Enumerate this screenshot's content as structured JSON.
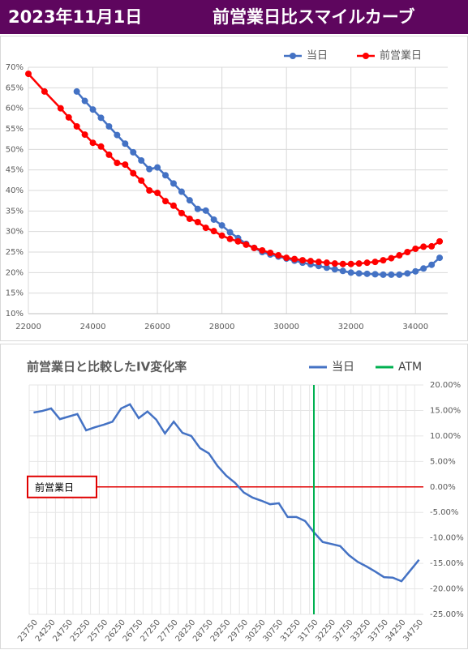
{
  "header": {
    "date": "2023年11月1日",
    "title": "前営業日比スマイルカーブ"
  },
  "chart_data": [
    {
      "type": "line",
      "markers": true,
      "grid": true,
      "legend": "top",
      "xlim": [
        22000,
        35000
      ],
      "xticks": [
        22000,
        24000,
        26000,
        28000,
        30000,
        32000,
        34000
      ],
      "ylim": [
        10,
        70
      ],
      "yticks": [
        {
          "value": 10,
          "label": "10%"
        },
        {
          "value": 15,
          "label": "15%"
        },
        {
          "value": 20,
          "label": "20%"
        },
        {
          "value": 25,
          "label": "25%"
        },
        {
          "value": 30,
          "label": "30%"
        },
        {
          "value": 35,
          "label": "35%"
        },
        {
          "value": 40,
          "label": "40%"
        },
        {
          "value": 45,
          "label": "45%"
        },
        {
          "value": 50,
          "label": "50%"
        },
        {
          "value": 55,
          "label": "55%"
        },
        {
          "value": 60,
          "label": "60%"
        },
        {
          "value": 65,
          "label": "65%"
        },
        {
          "value": 70,
          "label": "70%"
        }
      ],
      "series": [
        {
          "name": "当日",
          "color": "#4472c4",
          "x": [
            23500,
            23750,
            24000,
            24250,
            24500,
            24750,
            25000,
            25250,
            25500,
            25750,
            26000,
            26250,
            26500,
            26750,
            27000,
            27250,
            27500,
            27750,
            28000,
            28250,
            28500,
            28750,
            29000,
            29250,
            29500,
            29750,
            30000,
            30250,
            30500,
            30750,
            31000,
            31250,
            31500,
            31750,
            32000,
            32250,
            32500,
            32750,
            33000,
            33250,
            33500,
            33750,
            34000,
            34250,
            34500,
            34750
          ],
          "values": [
            64.1,
            61.8,
            59.7,
            57.7,
            55.6,
            53.5,
            51.4,
            49.3,
            47.3,
            45.2,
            45.6,
            43.7,
            41.7,
            39.7,
            37.6,
            35.5,
            35.1,
            32.9,
            31.5,
            29.8,
            28.4,
            27.0,
            26.0,
            25.0,
            24.4,
            23.9,
            23.4,
            22.9,
            22.4,
            22.0,
            21.6,
            21.2,
            20.8,
            20.4,
            20.0,
            19.8,
            19.7,
            19.6,
            19.5,
            19.5,
            19.5,
            19.8,
            20.3,
            21.0,
            21.9,
            23.6
          ]
        },
        {
          "name": "前営業日",
          "color": "#ff0000",
          "x": [
            22000,
            22500,
            23000,
            23250,
            23500,
            23750,
            24000,
            24250,
            24500,
            24750,
            25000,
            25250,
            25500,
            25750,
            26000,
            26250,
            26500,
            26750,
            27000,
            27250,
            27500,
            27750,
            28000,
            28250,
            28500,
            28750,
            29000,
            29250,
            29500,
            29750,
            30000,
            30250,
            30500,
            30750,
            31000,
            31250,
            31500,
            31750,
            32000,
            32250,
            32500,
            32750,
            33000,
            33250,
            33500,
            33750,
            34000,
            34250,
            34500,
            34750
          ],
          "values": [
            68.4,
            64.1,
            60.0,
            57.8,
            55.6,
            53.6,
            51.6,
            50.7,
            48.7,
            46.7,
            46.3,
            44.2,
            42.4,
            40.0,
            39.4,
            37.4,
            36.3,
            34.5,
            33.1,
            32.3,
            30.9,
            30.1,
            29.0,
            28.2,
            27.6,
            26.8,
            26.0,
            25.4,
            24.8,
            24.2,
            23.6,
            23.3,
            23.0,
            22.8,
            22.6,
            22.4,
            22.2,
            22.1,
            22.1,
            22.2,
            22.4,
            22.6,
            23.0,
            23.5,
            24.2,
            25.0,
            25.8,
            26.3,
            26.4,
            27.6
          ]
        }
      ]
    },
    {
      "type": "line",
      "title": "前営業日と比較したIV変化率",
      "grid": true,
      "legend": "top",
      "y_axis_side": "right",
      "categories": [
        "23750",
        null,
        "24250",
        null,
        "24750",
        null,
        "25250",
        null,
        "25750",
        null,
        "26250",
        null,
        "26750",
        null,
        "27250",
        null,
        "27750",
        null,
        "28250",
        null,
        "28750",
        null,
        "29250",
        null,
        "29750",
        null,
        "30250",
        null,
        "30750",
        null,
        "31250",
        null,
        "31750",
        null,
        "32250",
        null,
        "32750",
        null,
        "33250",
        null,
        "33750",
        null,
        "34250",
        null,
        "34750"
      ],
      "ylim": [
        -25,
        20
      ],
      "yticks": [
        {
          "value": -25,
          "label": "-25.00%"
        },
        {
          "value": -20,
          "label": "-20.00%"
        },
        {
          "value": -15,
          "label": "-15.00%"
        },
        {
          "value": -10,
          "label": "-10.00%"
        },
        {
          "value": -5,
          "label": "-5.00%"
        },
        {
          "value": 0,
          "label": "0.00%"
        },
        {
          "value": 5,
          "label": "5.00%"
        },
        {
          "value": 10,
          "label": "10.00%"
        },
        {
          "value": 15,
          "label": "15.00%"
        },
        {
          "value": 20,
          "label": "20.00%"
        }
      ],
      "series": [
        {
          "name": "当日",
          "color": "#4472c4",
          "values": [
            14.6,
            14.9,
            15.4,
            13.3,
            13.8,
            14.3,
            11.1,
            11.7,
            12.2,
            12.8,
            15.4,
            16.2,
            13.5,
            14.8,
            13.2,
            10.5,
            12.8,
            10.6,
            10.0,
            7.6,
            6.6,
            4.1,
            2.2,
            0.8,
            -1.1,
            -2.1,
            -2.7,
            -3.4,
            -3.2,
            -5.9,
            -5.9,
            -6.7,
            -8.9,
            -10.8,
            -11.2,
            -11.6,
            -13.4,
            -14.7,
            -15.6,
            -16.6,
            -17.7,
            -17.8,
            -18.5,
            -16.4,
            -14.3
          ]
        },
        {
          "name": "ATM",
          "color": "#00b050",
          "at": "31750"
        }
      ],
      "reference": {
        "label": "前営業日",
        "value": 0,
        "color": "#e00000"
      }
    }
  ]
}
